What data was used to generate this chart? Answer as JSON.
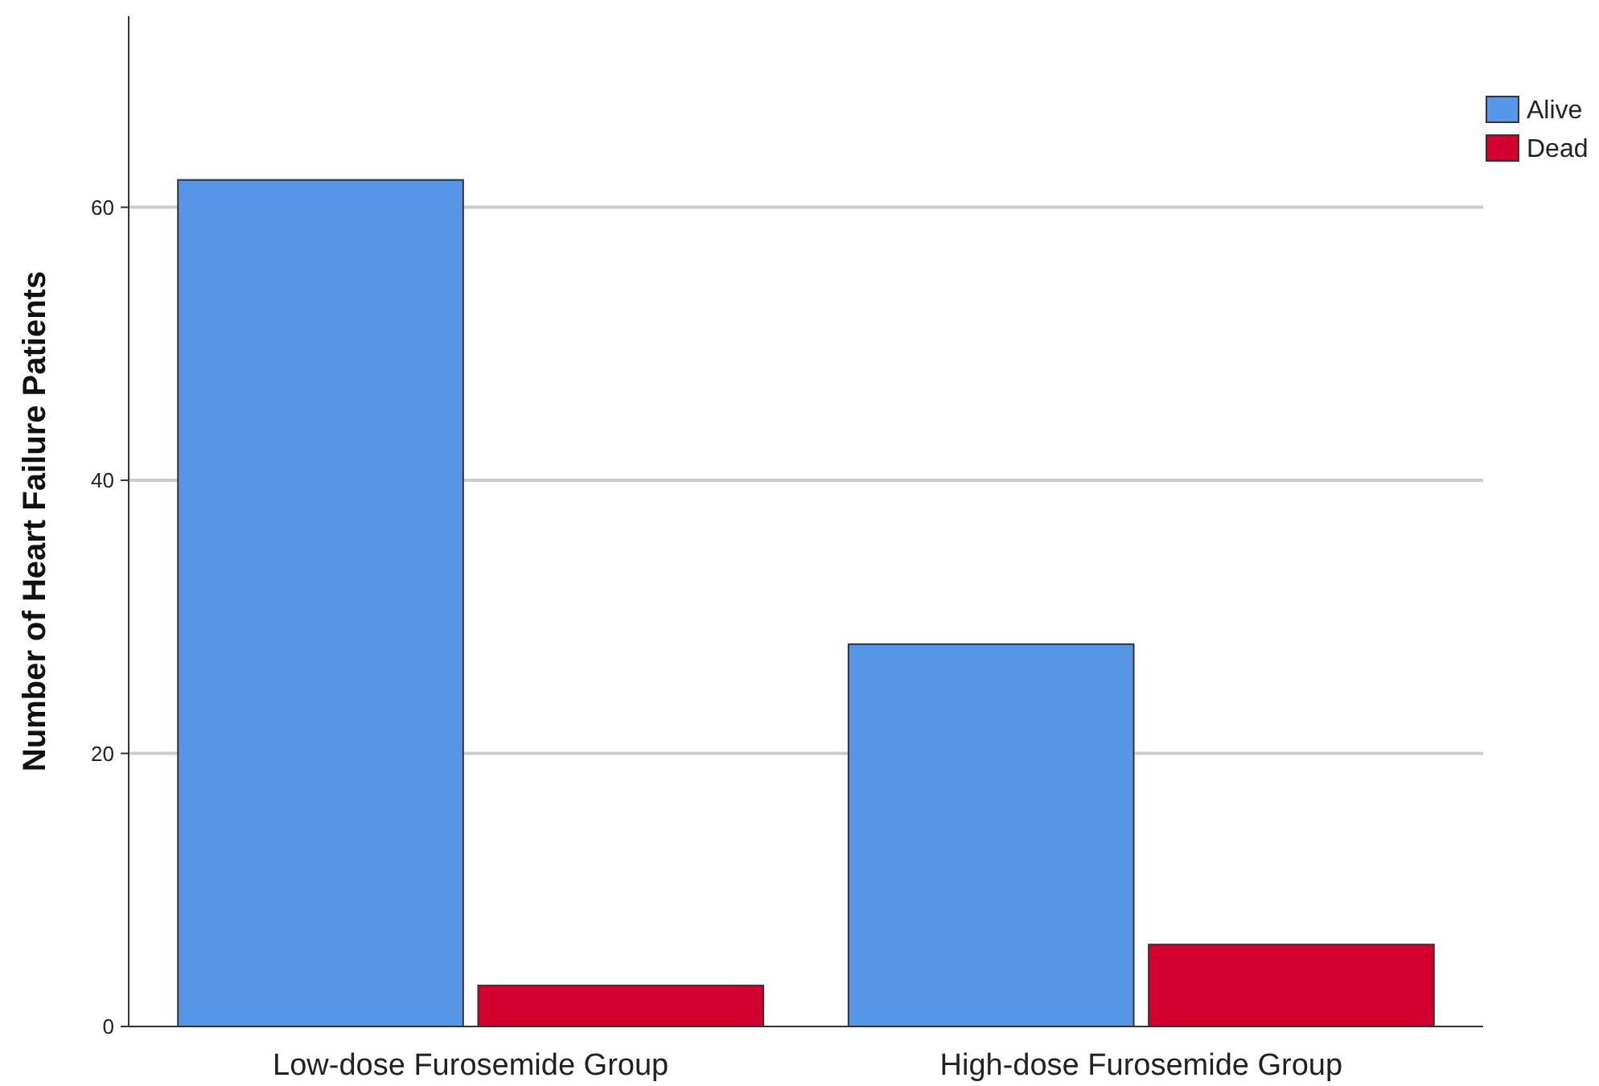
{
  "chart_data": {
    "type": "bar",
    "ylabel": "Number of Heart Failure Patients",
    "categories": [
      "Low-dose Furosemide Group",
      "High-dose Furosemide Group"
    ],
    "series": [
      {
        "name": "Alive",
        "color": "#5596e6",
        "values": [
          62,
          28
        ]
      },
      {
        "name": "Dead",
        "color": "#d3002d",
        "values": [
          3,
          6
        ]
      }
    ],
    "ylim": [
      0,
      74
    ],
    "yticks": [
      0,
      20,
      40,
      60
    ],
    "grid": "y",
    "legend": "top right"
  }
}
